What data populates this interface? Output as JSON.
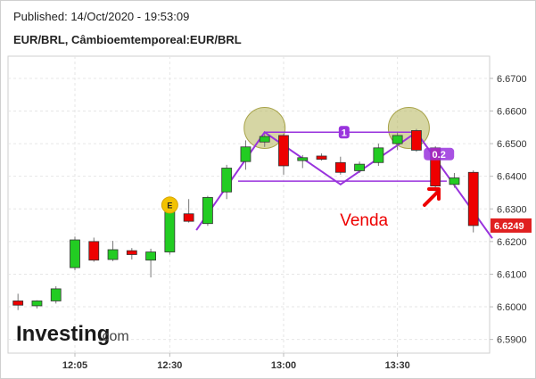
{
  "header": {
    "published": "Published: 14/Oct/2020 - 19:53:09",
    "symbol": "EUR/BRL, Câmbioemtemporeal:EUR/BRL"
  },
  "watermark": {
    "brand": "Investing",
    "suffix": ".com"
  },
  "colors": {
    "up": "#22cc22",
    "down": "#ee0000",
    "pattern": "#9933dd",
    "highlight": "#b5b45a",
    "earnings": "#f2c200",
    "annotation": "#ee0000",
    "price_tag": "#e02020"
  },
  "chart_data": {
    "type": "candlestick",
    "instrument": "EUR/BRL",
    "interval_minutes": 5,
    "x_ticks": [
      "12:05",
      "12:30",
      "13:00",
      "13:30"
    ],
    "y_ticks": [
      "6.6700",
      "6.6600",
      "6.6500",
      "6.6400",
      "6.6300",
      "6.6200",
      "6.6100",
      "6.6000",
      "6.5900"
    ],
    "ylim": [
      6.5858,
      6.6768
    ],
    "current_price": "6.6249",
    "candles": [
      {
        "t": "11:50",
        "o": 6.6018,
        "h": 6.604,
        "l": 6.599,
        "c": 6.6005
      },
      {
        "t": "11:55",
        "o": 6.6003,
        "h": 6.602,
        "l": 6.5995,
        "c": 6.6018
      },
      {
        "t": "12:00",
        "o": 6.6018,
        "h": 6.6063,
        "l": 6.601,
        "c": 6.6055
      },
      {
        "t": "12:05",
        "o": 6.612,
        "h": 6.6215,
        "l": 6.6112,
        "c": 6.6205
      },
      {
        "t": "12:10",
        "o": 6.62,
        "h": 6.6212,
        "l": 6.6138,
        "c": 6.6143
      },
      {
        "t": "12:15",
        "o": 6.6145,
        "h": 6.6202,
        "l": 6.614,
        "c": 6.6175
      },
      {
        "t": "12:20",
        "o": 6.6172,
        "h": 6.618,
        "l": 6.6145,
        "c": 6.616
      },
      {
        "t": "12:25",
        "o": 6.6143,
        "h": 6.6178,
        "l": 6.609,
        "c": 6.6168
      },
      {
        "t": "12:30",
        "o": 6.6168,
        "h": 6.63,
        "l": 6.616,
        "c": 6.6298
      },
      {
        "t": "12:35",
        "o": 6.6285,
        "h": 6.633,
        "l": 6.6258,
        "c": 6.6262
      },
      {
        "t": "12:40",
        "o": 6.6255,
        "h": 6.634,
        "l": 6.6248,
        "c": 6.6335
      },
      {
        "t": "12:45",
        "o": 6.6352,
        "h": 6.6435,
        "l": 6.633,
        "c": 6.6425
      },
      {
        "t": "12:50",
        "o": 6.6445,
        "h": 6.651,
        "l": 6.642,
        "c": 6.649
      },
      {
        "t": "12:55",
        "o": 6.6505,
        "h": 6.653,
        "l": 6.649,
        "c": 6.6522
      },
      {
        "t": "13:00",
        "o": 6.6525,
        "h": 6.653,
        "l": 6.6405,
        "c": 6.6432
      },
      {
        "t": "13:05",
        "o": 6.6448,
        "h": 6.6465,
        "l": 6.6425,
        "c": 6.6457
      },
      {
        "t": "13:10",
        "o": 6.6462,
        "h": 6.647,
        "l": 6.6448,
        "c": 6.6452
      },
      {
        "t": "13:15",
        "o": 6.6442,
        "h": 6.646,
        "l": 6.6405,
        "c": 6.6412
      },
      {
        "t": "13:20",
        "o": 6.6417,
        "h": 6.6445,
        "l": 6.641,
        "c": 6.6437
      },
      {
        "t": "13:25",
        "o": 6.6442,
        "h": 6.65,
        "l": 6.6432,
        "c": 6.6487
      },
      {
        "t": "13:30",
        "o": 6.65,
        "h": 6.6535,
        "l": 6.648,
        "c": 6.6525
      },
      {
        "t": "13:35",
        "o": 6.654,
        "h": 6.6545,
        "l": 6.6475,
        "c": 6.648
      },
      {
        "t": "13:40",
        "o": 6.6487,
        "h": 6.6492,
        "l": 6.6348,
        "c": 6.637
      },
      {
        "t": "13:45",
        "o": 6.6375,
        "h": 6.641,
        "l": 6.6365,
        "c": 6.6395
      },
      {
        "t": "13:50",
        "o": 6.6412,
        "h": 6.6418,
        "l": 6.6228,
        "c": 6.6249
      }
    ],
    "pattern": {
      "label_top": "1",
      "label_right": "0.2",
      "zigzag": [
        {
          "t": "12:37",
          "y": 6.6235
        },
        {
          "t": "12:55",
          "y": 6.6535
        },
        {
          "t": "13:15",
          "y": 6.6375
        },
        {
          "t": "13:35",
          "y": 6.6535
        },
        {
          "t": "13:55",
          "y": 6.621
        }
      ],
      "neckline": {
        "t1": "12:48",
        "t2": "13:43",
        "y": 6.6385
      },
      "top_line": {
        "t1": "12:55",
        "t2": "13:35",
        "y": 6.6535
      },
      "highlights": [
        {
          "t": "12:55",
          "y": 6.6548
        },
        {
          "t": "13:33",
          "y": 6.6548
        }
      ]
    },
    "earnings_marker": {
      "label": "E",
      "t": "12:30",
      "y": 6.6312
    },
    "annotation": {
      "text": "Venda",
      "t": "13:28",
      "y": 6.627
    }
  }
}
